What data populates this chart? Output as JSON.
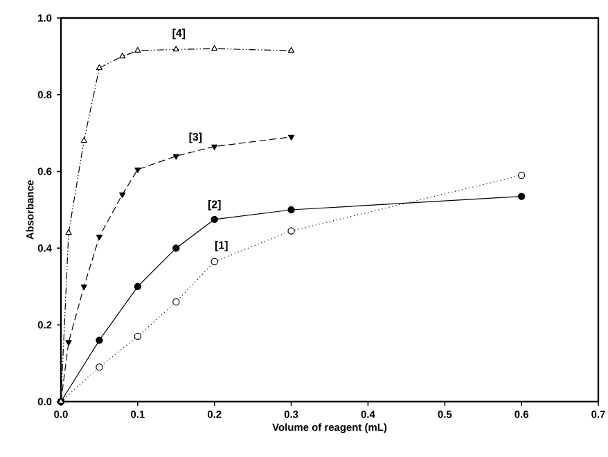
{
  "chart_data": {
    "type": "line",
    "xlabel": "Volume of reagent (mL)",
    "ylabel": "Absorbance",
    "xlim": [
      0,
      0.7
    ],
    "ylim": [
      0,
      1.0
    ],
    "xticks": [
      {
        "value": 0,
        "label": "0.0"
      },
      0.1,
      0.2,
      0.3,
      0.4,
      0.5,
      0.6,
      0.7
    ],
    "yticks": [
      {
        "value": 0,
        "label": "0.0"
      },
      0.2,
      0.4,
      0.6,
      0.8,
      {
        "value": 1,
        "label": "1.0"
      }
    ],
    "grid": false,
    "series": [
      {
        "name": "[1]",
        "color": "#000000",
        "marker": "circle",
        "line_style": "dotted",
        "x": [
          0,
          0.05,
          0.1,
          0.15,
          0.2,
          0.3,
          0.6
        ],
        "values": [
          0,
          0.09,
          0.17,
          0.26,
          0.365,
          0.445,
          0.59
        ]
      },
      {
        "name": "[2]",
        "color": "#000000",
        "marker": "circle",
        "line_style": "solid",
        "x": [
          0,
          0.05,
          0.1,
          0.15,
          0.2,
          0.3,
          0.6
        ],
        "values": [
          0,
          0.16,
          0.3,
          0.4,
          0.475,
          0.5,
          0.535
        ]
      },
      {
        "name": "[3]",
        "color": "#000000",
        "marker": "triangle-down",
        "line_style": "dashed",
        "x": [
          0,
          0.01,
          0.03,
          0.05,
          0.08,
          0.1,
          0.15,
          0.2,
          0.3
        ],
        "values": [
          0,
          0.155,
          0.3,
          0.43,
          0.54,
          0.605,
          0.64,
          0.665,
          0.69
        ]
      },
      {
        "name": "[4]",
        "color": "#000000",
        "marker": "triangle",
        "line_style": "dashdotdot",
        "x": [
          0,
          0.01,
          0.03,
          0.05,
          0.08,
          0.1,
          0.15,
          0.2,
          0.3
        ],
        "values": [
          0,
          0.44,
          0.68,
          0.87,
          0.9,
          0.915,
          0.918,
          0.92,
          0.915
        ]
      }
    ]
  }
}
